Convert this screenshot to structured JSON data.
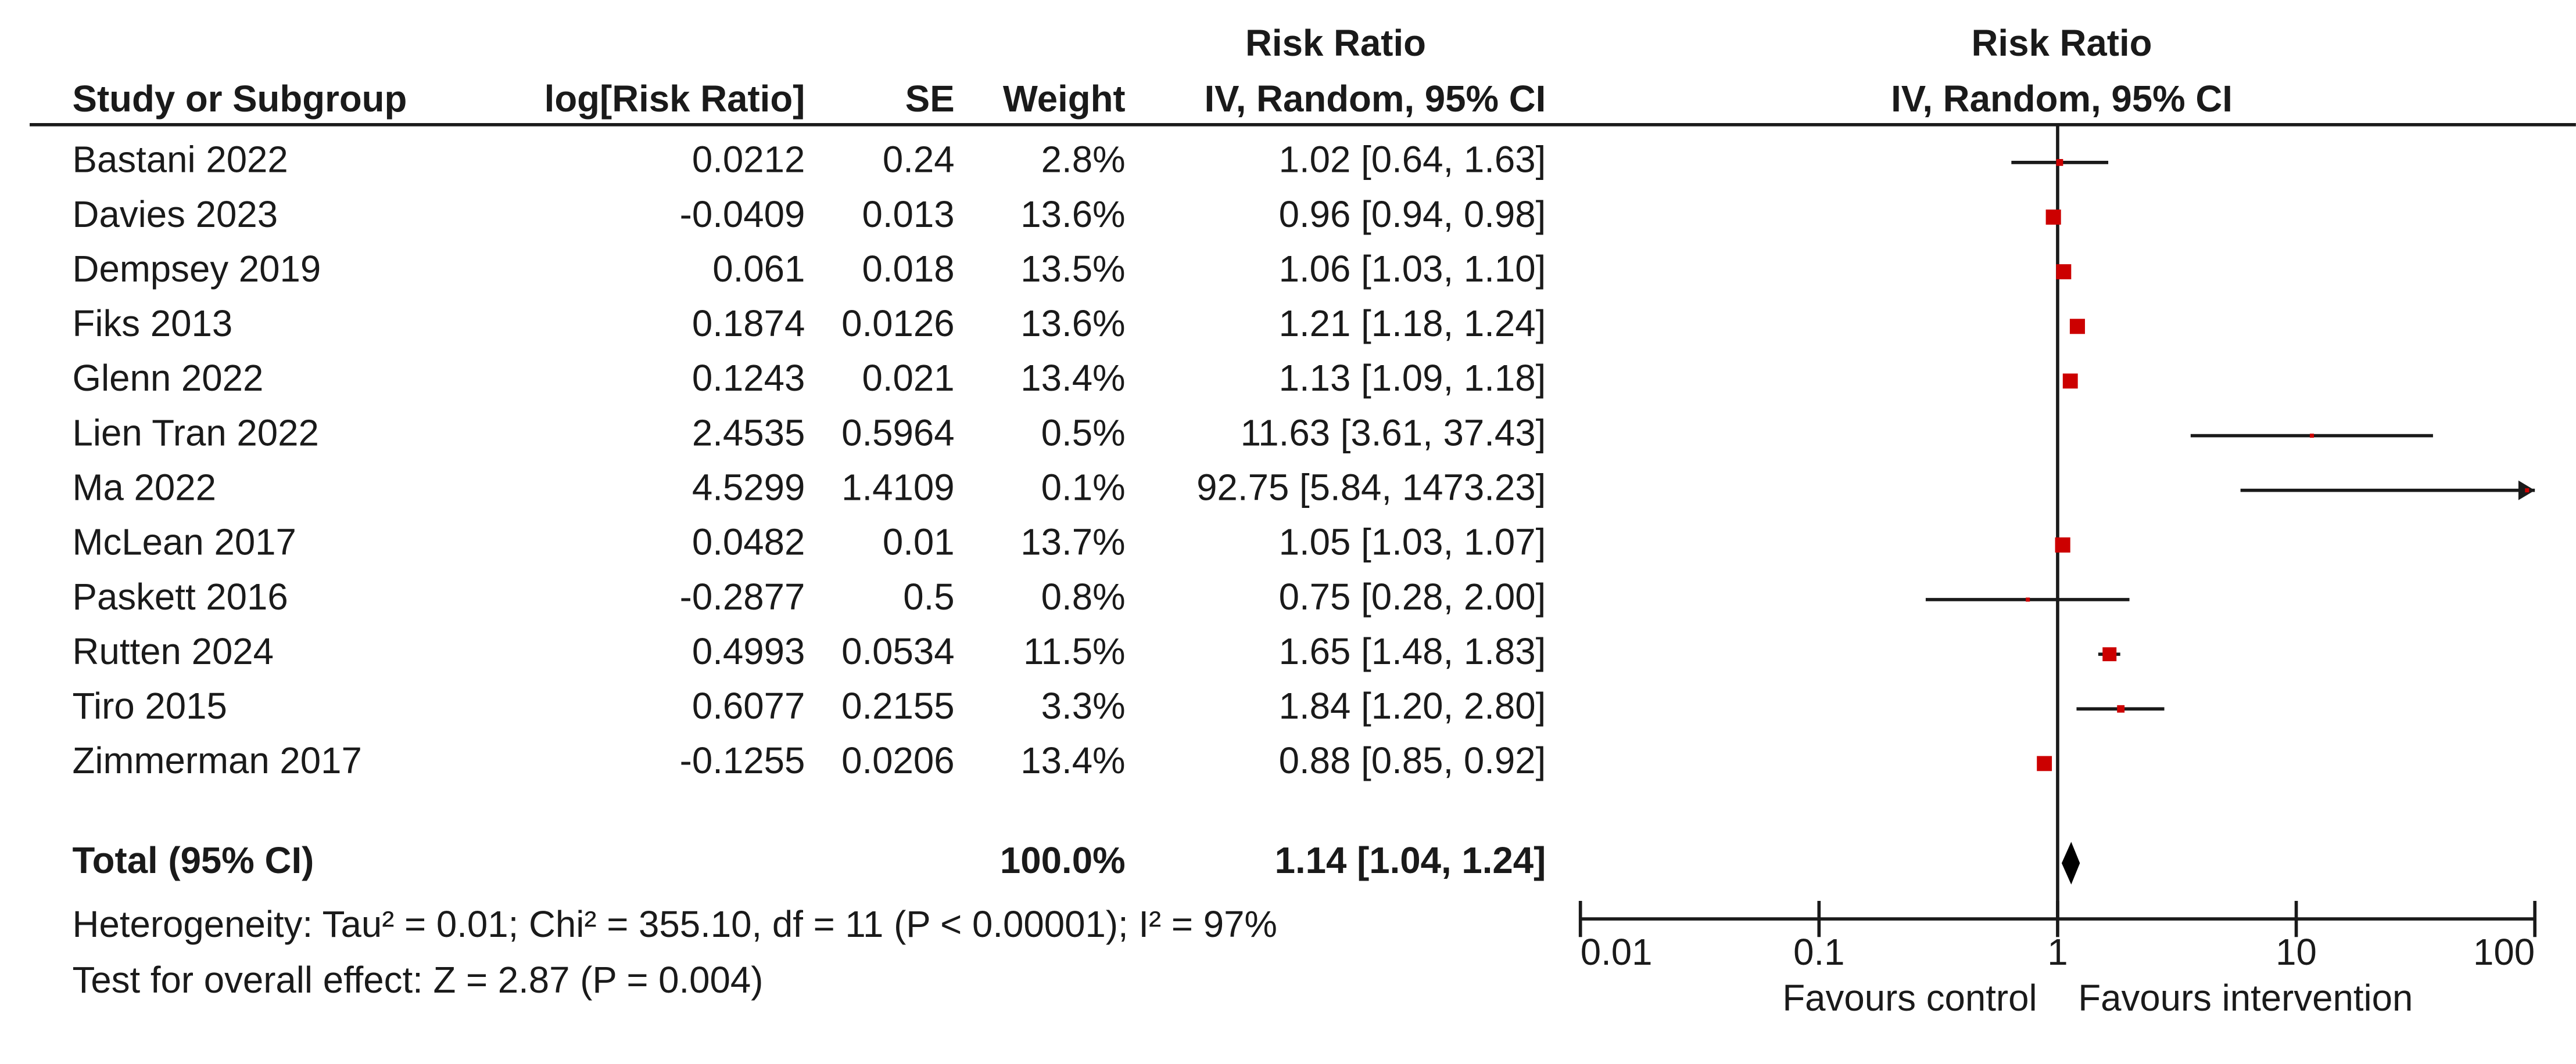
{
  "chart_data": {
    "type": "forest",
    "column_group": "Risk Ratio",
    "columns": [
      "Study or Subgroup",
      "log[Risk Ratio]",
      "SE",
      "Weight",
      "IV, Random, 95% CI"
    ],
    "plot_header": [
      "Risk Ratio",
      "IV, Random, 95% CI"
    ],
    "studies": [
      {
        "name": "Bastani 2022",
        "log_rr": 0.0212,
        "se": 0.24,
        "weight": 2.8,
        "weight_label": "2.8%",
        "rr": 1.02,
        "lower": 0.64,
        "upper": 1.63,
        "ci_label": "1.02 [0.64, 1.63]"
      },
      {
        "name": "Davies 2023",
        "log_rr": -0.0409,
        "se": 0.013,
        "weight": 13.6,
        "weight_label": "13.6%",
        "rr": 0.96,
        "lower": 0.94,
        "upper": 0.98,
        "ci_label": "0.96 [0.94, 0.98]"
      },
      {
        "name": "Dempsey 2019",
        "log_rr": 0.061,
        "se": 0.018,
        "weight": 13.5,
        "weight_label": "13.5%",
        "rr": 1.06,
        "lower": 1.03,
        "upper": 1.1,
        "ci_label": "1.06 [1.03, 1.10]"
      },
      {
        "name": "Fiks 2013",
        "log_rr": 0.1874,
        "se": 0.0126,
        "weight": 13.6,
        "weight_label": "13.6%",
        "rr": 1.21,
        "lower": 1.18,
        "upper": 1.24,
        "ci_label": "1.21 [1.18, 1.24]"
      },
      {
        "name": "Glenn 2022",
        "log_rr": 0.1243,
        "se": 0.021,
        "weight": 13.4,
        "weight_label": "13.4%",
        "rr": 1.13,
        "lower": 1.09,
        "upper": 1.18,
        "ci_label": "1.13 [1.09, 1.18]"
      },
      {
        "name": "Lien Tran 2022",
        "log_rr": 2.4535,
        "se": 0.5964,
        "weight": 0.5,
        "weight_label": "0.5%",
        "rr": 11.63,
        "lower": 3.61,
        "upper": 37.43,
        "ci_label": "11.63 [3.61, 37.43]"
      },
      {
        "name": "Ma 2022",
        "log_rr": 4.5299,
        "se": 1.4109,
        "weight": 0.1,
        "weight_label": "0.1%",
        "rr": 92.75,
        "lower": 5.84,
        "upper": 1473.23,
        "ci_label": "92.75 [5.84, 1473.23]"
      },
      {
        "name": "McLean 2017",
        "log_rr": 0.0482,
        "se": 0.01,
        "weight": 13.7,
        "weight_label": "13.7%",
        "rr": 1.05,
        "lower": 1.03,
        "upper": 1.07,
        "ci_label": "1.05 [1.03, 1.07]"
      },
      {
        "name": "Paskett 2016",
        "log_rr": -0.2877,
        "se": 0.5,
        "weight": 0.8,
        "weight_label": "0.8%",
        "rr": 0.75,
        "lower": 0.28,
        "upper": 2.0,
        "ci_label": "0.75 [0.28, 2.00]"
      },
      {
        "name": "Rutten 2024",
        "log_rr": 0.4993,
        "se": 0.0534,
        "weight": 11.5,
        "weight_label": "11.5%",
        "rr": 1.65,
        "lower": 1.48,
        "upper": 1.83,
        "ci_label": "1.65 [1.48, 1.83]"
      },
      {
        "name": "Tiro 2015",
        "log_rr": 0.6077,
        "se": 0.2155,
        "weight": 3.3,
        "weight_label": "3.3%",
        "rr": 1.84,
        "lower": 1.2,
        "upper": 2.8,
        "ci_label": "1.84 [1.20, 2.80]"
      },
      {
        "name": "Zimmerman 2017",
        "log_rr": -0.1255,
        "se": 0.0206,
        "weight": 13.4,
        "weight_label": "13.4%",
        "rr": 0.88,
        "lower": 0.85,
        "upper": 0.92,
        "ci_label": "0.88 [0.85, 0.92]"
      }
    ],
    "total": {
      "name": "Total (95% CI)",
      "weight": 100,
      "weight_label": "100.0%",
      "rr": 1.14,
      "lower": 1.04,
      "upper": 1.24,
      "ci_label": "1.14 [1.04, 1.24]"
    },
    "heterogeneity": "Heterogeneity: Tau² = 0.01; Chi² = 355.10, df = 11 (P < 0.00001); I² = 97%",
    "overall_effect": "Test for overall effect: Z = 2.87 (P = 0.004)",
    "xscale": "log",
    "xlim": [
      0.01,
      100
    ],
    "xticks": [
      0.01,
      0.1,
      1,
      10,
      100
    ],
    "favours": [
      "Favours control",
      "Favours intervention"
    ],
    "color": "#cc0000"
  }
}
